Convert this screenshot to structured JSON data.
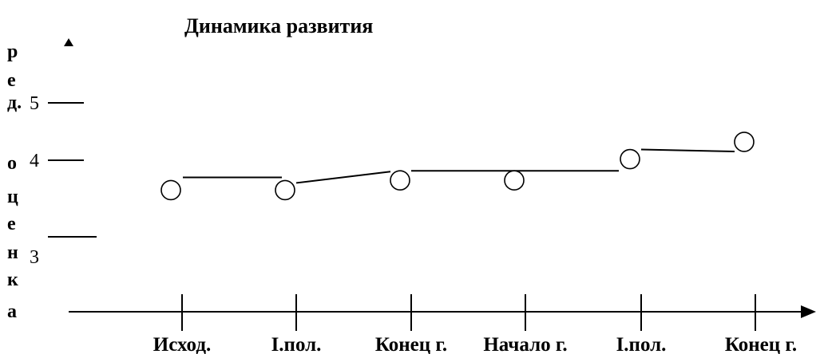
{
  "chart_data": {
    "type": "line",
    "title": "Динамика развития",
    "ylabel": "ред. оценка",
    "ylabel_letters": [
      "р",
      "е",
      "д.",
      "о",
      "ц",
      "е",
      "н",
      "к",
      "а"
    ],
    "y_ticks": [
      "5",
      "4",
      "3"
    ],
    "categories": [
      "Исход.",
      "I.пол.",
      "Конец г.",
      "Начало г.",
      "I.пол.",
      "Конец г."
    ],
    "values": [
      3.48,
      3.48,
      3.65,
      3.65,
      4.02,
      4.32
    ],
    "ylim": [
      2.7,
      5.5
    ],
    "grid": false,
    "legend": "none",
    "colors": {
      "line": "#000000",
      "marker_fill": "#ffffff"
    }
  }
}
